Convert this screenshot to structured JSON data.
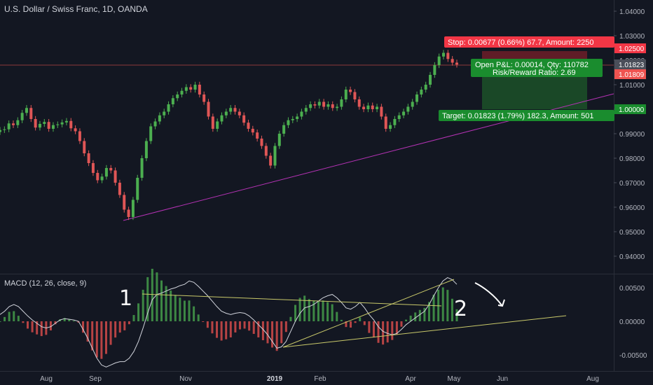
{
  "header": {
    "title": "U.S. Dollar / Swiss Franc, 1D, OANDA",
    "macd_title": "MACD (12, 26, close, 9)"
  },
  "colors": {
    "background": "#131722",
    "up": "#26a69a",
    "down": "#ef5350",
    "bull_candle": "#4caf50",
    "bear_candle": "#e05656",
    "trendline": "#b432b4",
    "stop_zone": "#7a1f2a",
    "target_zone": "#1e5a2a",
    "macd_line": "#d1d4dc",
    "trend_yellow": "#c9c96a",
    "hist_pos": "#4caf50",
    "hist_neg": "#ef5350"
  },
  "position": {
    "stop_label": "Stop: 0.00677 (0.66%) 67.7, Amount: 2250",
    "pnl_label": "Open P&L: 0.00014, Qty: 110782",
    "rr_label": "Risk/Reward Ratio: 2.69",
    "target_label": "Target: 0.01823 (1.79%) 182.3, Amount: 501",
    "stop_price": 1.025,
    "entry_price": 1.01823,
    "target_price": 1.0,
    "close_price": 1.01809
  },
  "price_tags": {
    "stop": "1.02500",
    "current": "1.01823",
    "close": "1.01809",
    "target": "1.00000"
  },
  "annotations": {
    "mark_1": "1",
    "mark_2": "2"
  },
  "chart_data": [
    {
      "type": "candlestick",
      "title": "U.S. Dollar / Swiss Franc, 1D, OANDA",
      "x_ticks": [
        "Aug",
        "Sep",
        "Nov",
        "2019",
        "Feb",
        "Apr",
        "May",
        "Jun",
        "Aug"
      ],
      "y_ticks": [
        "0.94000",
        "0.95000",
        "0.96000",
        "0.97000",
        "0.98000",
        "0.99000",
        "1.00000",
        "1.01000",
        "1.02000",
        "1.03000",
        "1.04000"
      ],
      "ylim": [
        0.9325,
        1.0445
      ],
      "grid": false,
      "close_series": [
        0.9915,
        0.9918,
        0.9942,
        0.9935,
        0.9955,
        0.9985,
        1.0005,
        0.996,
        0.9925,
        0.994,
        0.9948,
        0.992,
        0.9935,
        0.9938,
        0.9946,
        0.9952,
        0.9922,
        0.991,
        0.987,
        0.982,
        0.978,
        0.974,
        0.971,
        0.9725,
        0.976,
        0.975,
        0.97,
        0.965,
        0.959,
        0.956,
        0.963,
        0.972,
        0.98,
        0.987,
        0.993,
        0.995,
        0.9975,
        0.999,
        1.002,
        1.0045,
        1.006,
        1.0075,
        1.009,
        1.008,
        1.01,
        1.006,
        1.003,
        0.997,
        0.992,
        0.995,
        0.9975,
        0.999,
        1.0005,
        0.999,
        0.9975,
        0.9945,
        0.992,
        0.9905,
        0.988,
        0.985,
        0.981,
        0.977,
        0.985,
        0.99,
        0.9935,
        0.9955,
        0.996,
        0.997,
        0.999,
        1.0005,
        1.002,
        1.0015,
        1.003,
        1.001,
        1.002,
        1.0005,
        1.001,
        1.004,
        1.008,
        1.007,
        1.004,
        1.001,
        1.0,
        1.0015,
        1.0,
        1.001,
        0.997,
        0.992,
        0.9935,
        0.996,
        0.9975,
        0.999,
        1.001,
        1.003,
        1.006,
        1.008,
        1.01,
        1.014,
        1.018,
        1.0215,
        1.023,
        1.0205,
        1.019,
        1.0182
      ]
    },
    {
      "type": "line",
      "title": "MACD (12, 26, close, 9)",
      "y_ticks": [
        "-0.00500",
        "0.00000",
        "0.00500"
      ],
      "ylim": [
        -0.0075,
        0.007
      ],
      "series": [
        {
          "name": "MACD",
          "values": [
            0.001,
            0.0015,
            0.0022,
            0.0025,
            0.0022,
            0.0015,
            0.0008,
            0.0002,
            -0.0003,
            -0.0008,
            -0.001,
            -0.0008,
            -0.0003,
            0.0002,
            0.0004,
            0.0003,
            0.0002,
            0.0,
            -0.0012,
            -0.0025,
            -0.004,
            -0.0055,
            -0.0065,
            -0.0068,
            -0.0065,
            -0.0062,
            -0.006,
            -0.006,
            -0.0055,
            -0.0045,
            -0.003,
            -0.001,
            0.0012,
            0.0032,
            0.004,
            0.0042,
            0.0045,
            0.0048,
            0.005,
            0.0053,
            0.0055,
            0.006,
            0.0058,
            0.0052,
            0.0045,
            0.0038,
            0.003,
            0.0022,
            0.0015,
            0.0012,
            0.001,
            0.0012,
            0.0013,
            0.0012,
            0.0008,
            0.0002,
            -0.0005,
            -0.0012,
            -0.002,
            -0.003,
            -0.004,
            -0.0038,
            -0.003,
            -0.0015,
            0.0,
            0.0012,
            0.002,
            0.0022,
            0.0025,
            0.003,
            0.0035,
            0.0038,
            0.004,
            0.0035,
            0.0028,
            0.002,
            0.0018,
            0.0022,
            0.0028,
            0.002,
            0.001,
            0.0002,
            -0.0008,
            -0.0015,
            -0.0018,
            -0.002,
            -0.0018,
            -0.0012,
            -0.0005,
            0.0,
            0.0005,
            0.001,
            0.0015,
            0.0025,
            0.0038,
            0.005,
            0.006,
            0.0065,
            0.0062,
            0.0055
          ]
        }
      ]
    }
  ]
}
